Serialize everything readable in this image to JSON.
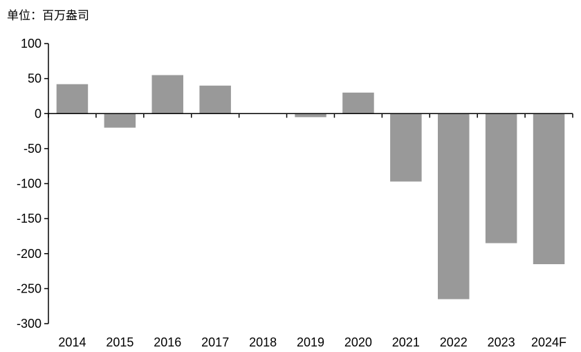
{
  "unit_label": "单位：百万盎司",
  "chart_data": {
    "type": "bar",
    "title": "",
    "xlabel": "",
    "ylabel": "",
    "ylim": [
      -300,
      100
    ],
    "yticks": [
      100,
      50,
      0,
      -50,
      -100,
      -150,
      -200,
      -250,
      -300
    ],
    "categories": [
      "2014",
      "2015",
      "2016",
      "2017",
      "2018",
      "2019",
      "2020",
      "2021",
      "2022",
      "2023",
      "2024F"
    ],
    "values": [
      42,
      -20,
      55,
      40,
      0,
      -5,
      30,
      -97,
      -265,
      -185,
      -215
    ],
    "bar_color": "#999999",
    "grid": false,
    "legend": "none"
  }
}
